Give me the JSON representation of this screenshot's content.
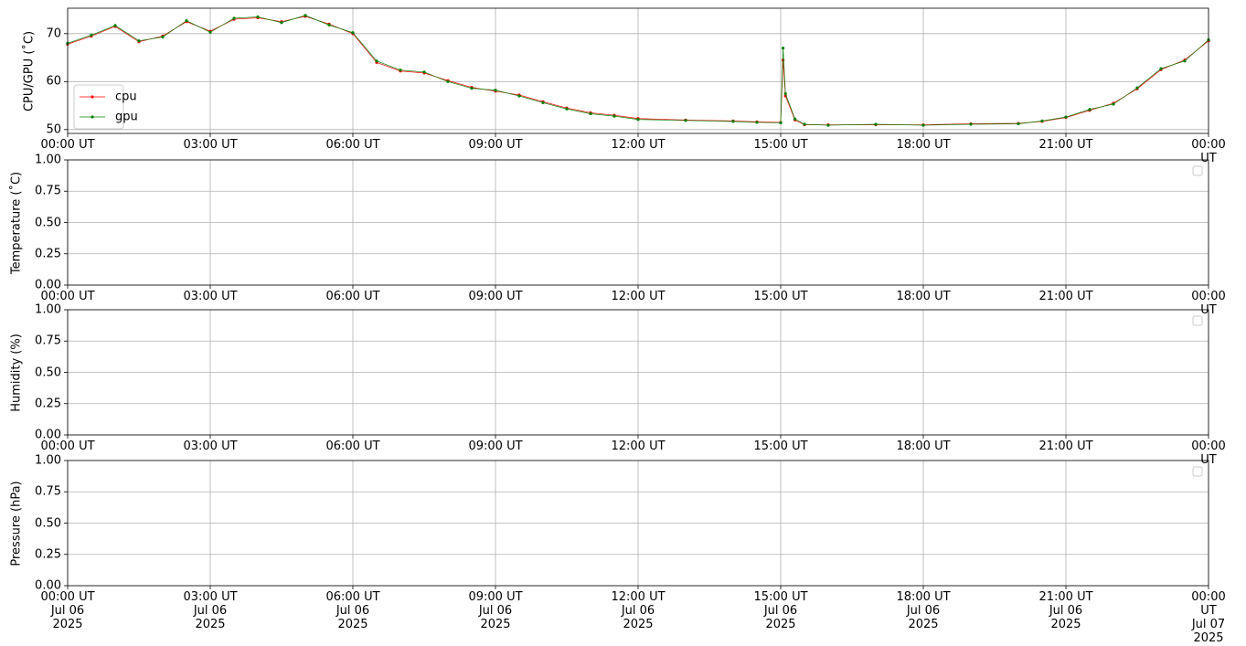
{
  "chart_data": [
    {
      "type": "line",
      "ylabel": "CPU/GPU (˚C)",
      "xlim": [
        0,
        24
      ],
      "ylim": [
        49.2,
        75.3
      ],
      "yticks": [
        50,
        60,
        70
      ],
      "grid": true,
      "legend": "lower left",
      "xticks": [
        {
          "value": 0,
          "label": "00:00 UT"
        },
        {
          "value": 3,
          "label": "03:00 UT"
        },
        {
          "value": 6,
          "label": "06:00 UT"
        },
        {
          "value": 9,
          "label": "09:00 UT"
        },
        {
          "value": 12,
          "label": "12:00 UT"
        },
        {
          "value": 15,
          "label": "15:00 UT"
        },
        {
          "value": 18,
          "label": "18:00 UT"
        },
        {
          "value": 21,
          "label": "21:00 UT"
        },
        {
          "value": 24,
          "label": "00:00 UT"
        }
      ],
      "x": [
        0,
        0.5,
        1,
        1.5,
        2,
        2.5,
        3,
        3.5,
        4,
        4.5,
        5,
        5.5,
        6,
        6.5,
        7,
        7.5,
        8,
        8.5,
        9,
        9.5,
        10,
        10.5,
        11,
        11.5,
        12,
        13,
        14,
        14.5,
        15,
        15.05,
        15.1,
        15.3,
        15.5,
        16,
        17,
        18,
        19,
        20,
        20.5,
        21,
        21.5,
        22,
        22.5,
        23,
        23.5,
        24
      ],
      "series": [
        {
          "name": "cpu",
          "color": "#ff0000",
          "values": [
            67.8,
            69.5,
            71.5,
            68.3,
            69.5,
            72.5,
            70.5,
            73,
            73.3,
            72.5,
            73.6,
            72,
            70,
            64,
            62.2,
            61.8,
            60.2,
            58.8,
            58,
            57.2,
            55.8,
            54.5,
            53.5,
            53,
            52.3,
            52,
            51.8,
            51.6,
            51.5,
            64.5,
            57,
            52,
            51,
            51,
            51,
            51,
            51.2,
            51.3,
            51.7,
            52.5,
            54,
            55.5,
            58.5,
            62.5,
            64.5,
            68.5
          ]
        },
        {
          "name": "gpu",
          "color": "#008000",
          "values": [
            68,
            69.7,
            71.7,
            68.5,
            69.3,
            72.7,
            70.3,
            73.2,
            73.5,
            72.3,
            73.8,
            71.8,
            70.2,
            64.3,
            62.4,
            62,
            60,
            58.6,
            58.2,
            57,
            55.6,
            54.3,
            53.3,
            52.8,
            52.1,
            51.9,
            51.7,
            51.5,
            51.4,
            67,
            57.5,
            52.2,
            51.1,
            50.9,
            51.1,
            50.9,
            51.1,
            51.2,
            51.8,
            52.6,
            54.2,
            55.3,
            58.7,
            62.7,
            64.3,
            68.7
          ]
        }
      ]
    },
    {
      "type": "line",
      "ylabel": "Temperature (˚C)",
      "xlim": [
        0,
        24
      ],
      "ylim": [
        0,
        1
      ],
      "grid": true,
      "legend": "upper right",
      "yticks": [
        {
          "value": 0,
          "label": "0.00"
        },
        {
          "value": 0.25,
          "label": "0.25"
        },
        {
          "value": 0.5,
          "label": "0.50"
        },
        {
          "value": 0.75,
          "label": "0.75"
        },
        {
          "value": 1,
          "label": "1.00"
        }
      ],
      "xticks": [
        {
          "value": 0,
          "label": "00:00 UT"
        },
        {
          "value": 3,
          "label": "03:00 UT"
        },
        {
          "value": 6,
          "label": "06:00 UT"
        },
        {
          "value": 9,
          "label": "09:00 UT"
        },
        {
          "value": 12,
          "label": "12:00 UT"
        },
        {
          "value": 15,
          "label": "15:00 UT"
        },
        {
          "value": 18,
          "label": "18:00 UT"
        },
        {
          "value": 21,
          "label": "21:00 UT"
        },
        {
          "value": 24,
          "label": "00:00 UT"
        }
      ],
      "series": []
    },
    {
      "type": "line",
      "ylabel": "Humidity (%)",
      "xlim": [
        0,
        24
      ],
      "ylim": [
        0,
        1
      ],
      "grid": true,
      "legend": "upper right",
      "yticks": [
        {
          "value": 0,
          "label": "0.00"
        },
        {
          "value": 0.25,
          "label": "0.25"
        },
        {
          "value": 0.5,
          "label": "0.50"
        },
        {
          "value": 0.75,
          "label": "0.75"
        },
        {
          "value": 1,
          "label": "1.00"
        }
      ],
      "xticks": [
        {
          "value": 0,
          "label": "00:00 UT"
        },
        {
          "value": 3,
          "label": "03:00 UT"
        },
        {
          "value": 6,
          "label": "06:00 UT"
        },
        {
          "value": 9,
          "label": "09:00 UT"
        },
        {
          "value": 12,
          "label": "12:00 UT"
        },
        {
          "value": 15,
          "label": "15:00 UT"
        },
        {
          "value": 18,
          "label": "18:00 UT"
        },
        {
          "value": 21,
          "label": "21:00 UT"
        },
        {
          "value": 24,
          "label": "00:00 UT"
        }
      ],
      "series": []
    },
    {
      "type": "line",
      "ylabel": "Pressure (hPa)",
      "xlim": [
        0,
        24
      ],
      "ylim": [
        0,
        1
      ],
      "grid": true,
      "legend": "upper right",
      "yticks": [
        {
          "value": 0,
          "label": "0.00"
        },
        {
          "value": 0.25,
          "label": "0.25"
        },
        {
          "value": 0.5,
          "label": "0.50"
        },
        {
          "value": 0.75,
          "label": "0.75"
        },
        {
          "value": 1,
          "label": "1.00"
        }
      ],
      "xticks": [
        {
          "value": 0,
          "label": "00:00 UT\nJul 06\n2025"
        },
        {
          "value": 3,
          "label": "03:00 UT\nJul 06\n2025"
        },
        {
          "value": 6,
          "label": "06:00 UT\nJul 06\n2025"
        },
        {
          "value": 9,
          "label": "09:00 UT\nJul 06\n2025"
        },
        {
          "value": 12,
          "label": "12:00 UT\nJul 06\n2025"
        },
        {
          "value": 15,
          "label": "15:00 UT\nJul 06\n2025"
        },
        {
          "value": 18,
          "label": "18:00 UT\nJul 06\n2025"
        },
        {
          "value": 21,
          "label": "21:00 UT\nJul 06\n2025"
        },
        {
          "value": 24,
          "label": "00:00 UT\nJul 07\n2025"
        }
      ],
      "series": []
    }
  ]
}
